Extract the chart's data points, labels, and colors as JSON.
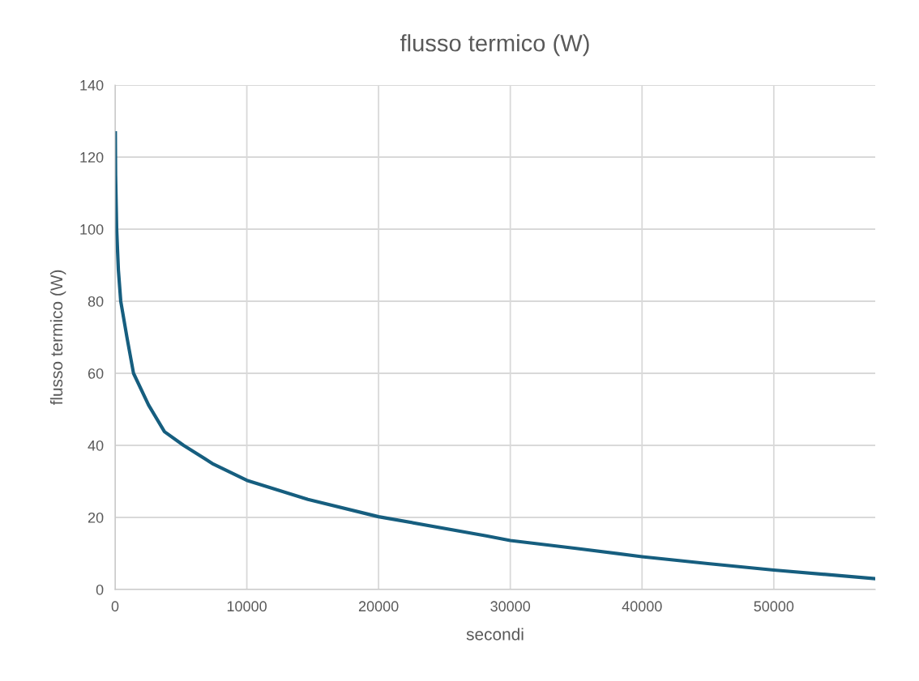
{
  "chart_data": {
    "type": "line",
    "title": "flusso termico (W)",
    "xlabel": "secondi",
    "ylabel": "flusso termico (W)",
    "xlim": [
      0,
      57700
    ],
    "xticks": [
      0,
      10000,
      20000,
      30000,
      40000,
      50000
    ],
    "ylim": [
      0,
      140
    ],
    "yticks": [
      0,
      20,
      40,
      60,
      80,
      100,
      120,
      140
    ],
    "grid": true,
    "legend": false,
    "marker": "none",
    "line_style": "solid",
    "series": [
      {
        "color": "#165e7f",
        "x": [
          20,
          40,
          120,
          250,
          430,
          900,
          1400,
          2540,
          3750,
          5200,
          7460,
          10000,
          14640,
          20000,
          28170,
          30000,
          35000,
          40000,
          45000,
          50000,
          57700
        ],
        "values": [
          126.7,
          115,
          100,
          88.7,
          80,
          70,
          60,
          51.2,
          43.8,
          40,
          34.8,
          30.3,
          25,
          20.2,
          14.9,
          13.6,
          11.4,
          9.1,
          7.2,
          5.4,
          3.0
        ]
      }
    ]
  }
}
